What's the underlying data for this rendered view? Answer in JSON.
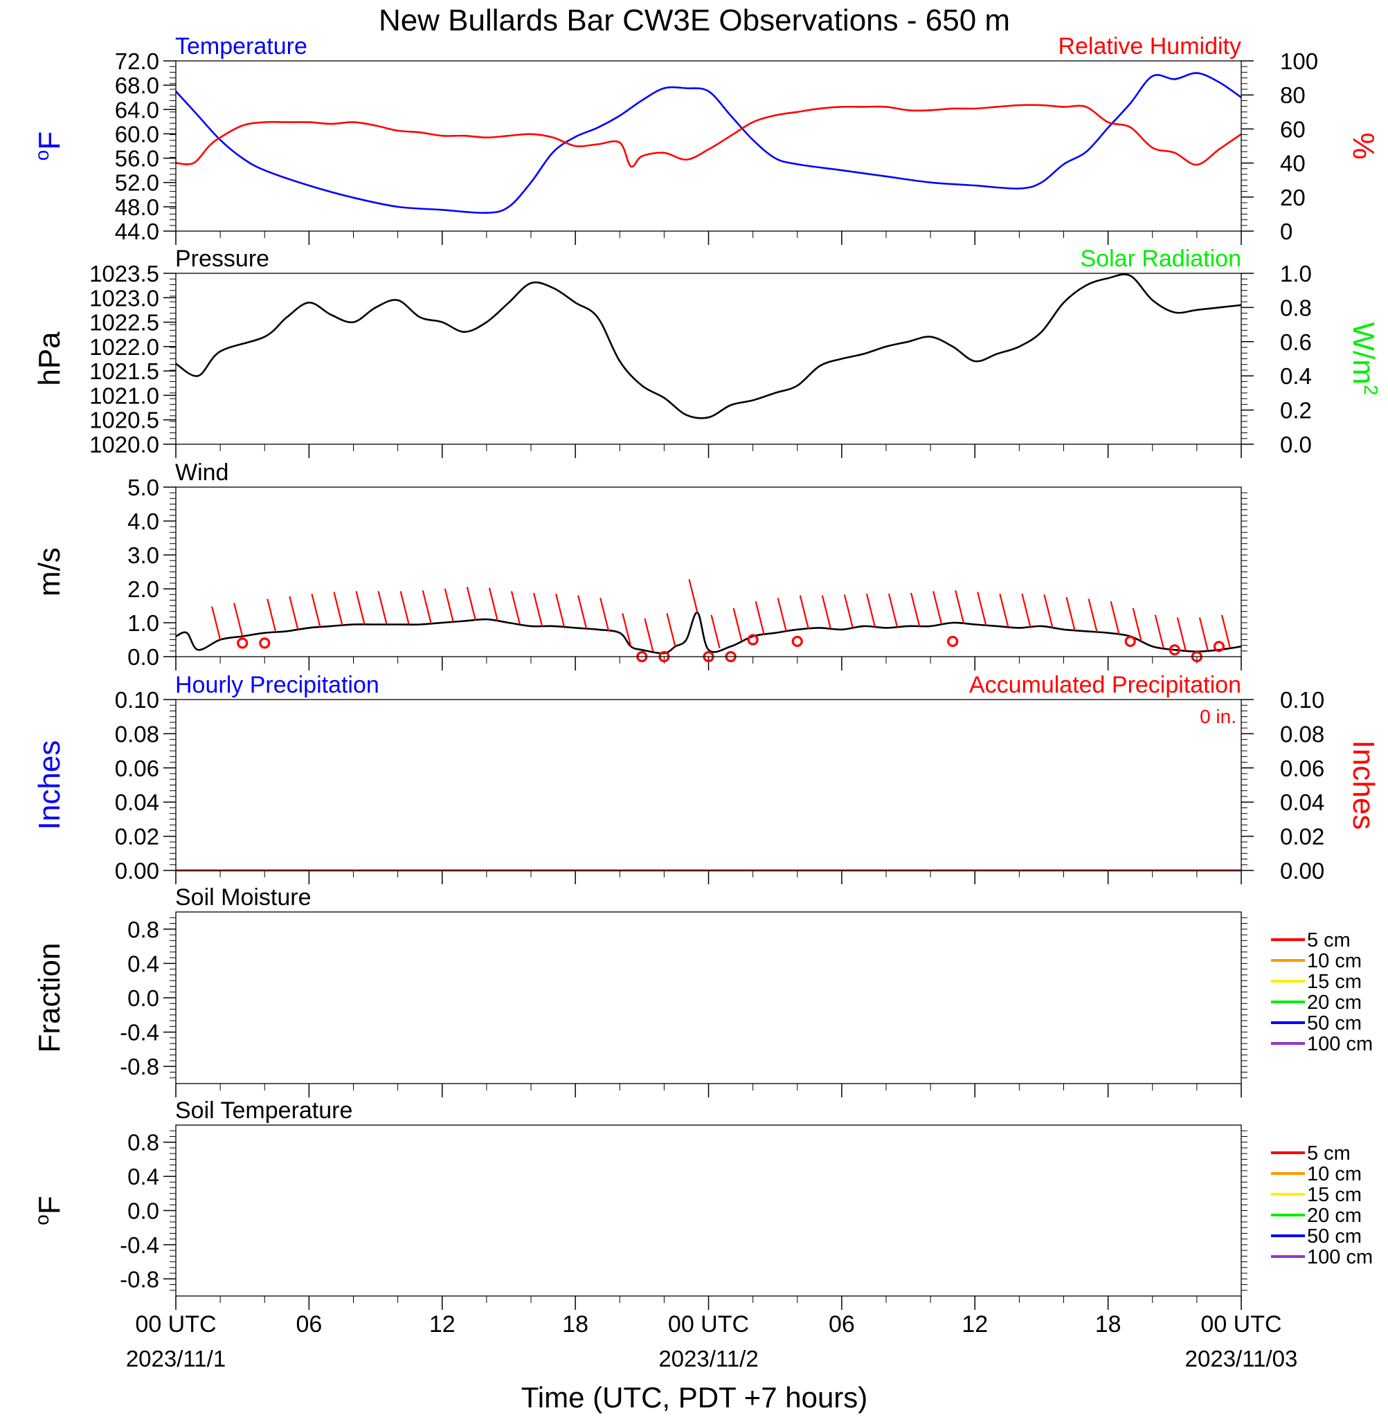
{
  "title": "New Bullards Bar CW3E Observations - 650 m",
  "xlabel": "Time (UTC, PDT +7 hours)",
  "x_axis": {
    "range_hours": [
      0,
      48
    ],
    "ticks": [
      {
        "hour": 0,
        "label": "00 UTC",
        "date": "2023/11/1"
      },
      {
        "hour": 6,
        "label": "06",
        "date": ""
      },
      {
        "hour": 12,
        "label": "12",
        "date": ""
      },
      {
        "hour": 18,
        "label": "18",
        "date": ""
      },
      {
        "hour": 24,
        "label": "00 UTC",
        "date": "2023/11/2"
      },
      {
        "hour": 30,
        "label": "06",
        "date": ""
      },
      {
        "hour": 36,
        "label": "12",
        "date": ""
      },
      {
        "hour": 42,
        "label": "18",
        "date": ""
      },
      {
        "hour": 48,
        "label": "00 UTC",
        "date": "2023/11/03"
      }
    ]
  },
  "colors": {
    "temperature": "#0000ff",
    "humidity": "#ff0000",
    "solar": "#00ee00",
    "pressure": "#000000"
  },
  "chart_data": [
    {
      "type": "line",
      "name_left": "Temperature",
      "name_right": "Relative Humidity",
      "ylabel_left": "oF",
      "ylabel_right": "%",
      "ylim_left": [
        44,
        72
      ],
      "yticks_left": [
        "72.0",
        "68.0",
        "64.0",
        "60.0",
        "56.0",
        "52.0",
        "48.0",
        "44.0"
      ],
      "ylim_right": [
        0,
        100
      ],
      "yticks_right": [
        "100",
        "80",
        "60",
        "40",
        "20",
        "0"
      ],
      "series": [
        {
          "name": "Temperature",
          "axis": "left",
          "color": "#0000ff",
          "x": [
            0,
            1,
            2,
            3,
            4,
            6,
            8,
            10,
            12,
            14,
            15,
            16,
            17,
            18,
            19,
            20,
            21,
            22,
            23,
            24,
            25,
            26,
            27,
            28,
            30,
            32,
            34,
            36,
            38,
            39,
            40,
            41,
            42,
            43,
            44,
            45,
            46,
            47,
            48
          ],
          "y": [
            67,
            63,
            59,
            56,
            54,
            51.5,
            49.5,
            48,
            47.5,
            47,
            48,
            52,
            57,
            59.5,
            61,
            63,
            65.5,
            67.5,
            67.5,
            67,
            63,
            59,
            56,
            55,
            54,
            53,
            52,
            51.5,
            51,
            52,
            55,
            57,
            61,
            65,
            69.5,
            69,
            70,
            68.5,
            66
          ]
        },
        {
          "name": "Relative Humidity",
          "axis": "right",
          "color": "#ff0000",
          "x": [
            0,
            0.8,
            1.5,
            2,
            3,
            4,
            5,
            6,
            7,
            8,
            9,
            10,
            11,
            12,
            13,
            14,
            15,
            16,
            17,
            18,
            19,
            20,
            20.5,
            21,
            22,
            23,
            24,
            25,
            26,
            27,
            28,
            29,
            30,
            31,
            32,
            33,
            34,
            35,
            36,
            37,
            38,
            39,
            40,
            41,
            42,
            43,
            44,
            45,
            46,
            47,
            48
          ],
          "y": [
            40,
            40,
            50,
            55,
            62,
            64,
            64,
            64,
            63,
            64,
            62,
            59,
            58,
            56,
            56,
            55,
            56,
            57,
            55,
            50,
            51,
            52,
            38,
            44,
            46,
            42,
            48,
            56,
            64,
            68,
            70,
            72,
            73,
            73,
            73,
            71,
            71,
            72,
            72,
            73,
            74,
            74,
            73,
            73,
            64,
            61,
            49,
            46,
            39,
            48,
            57
          ]
        }
      ]
    },
    {
      "type": "line",
      "name_left": "Pressure",
      "name_right": "Solar Radiation",
      "ylabel_left": "hPa",
      "ylabel_right": "W/m2",
      "ylim_left": [
        1020.0,
        1023.5
      ],
      "yticks_left": [
        "1023.5",
        "1023.0",
        "1022.5",
        "1022.0",
        "1021.5",
        "1021.0",
        "1020.5",
        "1020.0"
      ],
      "ylim_right": [
        0,
        1
      ],
      "yticks_right": [
        "1.0",
        "0.8",
        "0.6",
        "0.4",
        "0.2",
        "0.0"
      ],
      "series": [
        {
          "name": "Pressure",
          "axis": "left",
          "color": "#000000",
          "x": [
            0,
            1,
            2,
            4,
            5,
            6,
            7,
            8,
            9,
            10,
            11,
            12,
            13,
            14,
            15,
            16,
            17,
            18,
            19,
            20,
            21,
            22,
            23,
            24,
            25,
            26,
            27,
            28,
            29,
            30,
            31,
            32,
            33,
            34,
            35,
            36,
            37,
            38,
            39,
            40,
            41,
            42,
            43,
            44,
            45,
            46,
            47,
            48
          ],
          "y": [
            1021.65,
            1021.4,
            1021.9,
            1022.2,
            1022.6,
            1022.9,
            1022.65,
            1022.5,
            1022.8,
            1022.95,
            1022.6,
            1022.5,
            1022.3,
            1022.5,
            1022.9,
            1023.3,
            1023.2,
            1022.9,
            1022.6,
            1021.7,
            1021.2,
            1020.95,
            1020.6,
            1020.55,
            1020.8,
            1020.9,
            1021.05,
            1021.2,
            1021.6,
            1021.75,
            1021.85,
            1022.0,
            1022.1,
            1022.2,
            1022.0,
            1021.7,
            1021.85,
            1022.0,
            1022.3,
            1022.9,
            1023.25,
            1023.4,
            1023.45,
            1022.95,
            1022.7,
            1022.75,
            1022.8,
            1022.85
          ]
        }
      ]
    },
    {
      "type": "line",
      "name_left": "Wind",
      "ylabel_left": "m/s",
      "ylim_left": [
        0,
        5
      ],
      "yticks_left": [
        "5.0",
        "4.0",
        "3.0",
        "2.0",
        "1.0",
        "0.0"
      ],
      "series": [
        {
          "name": "Wind",
          "axis": "left",
          "color": "#000000",
          "x": [
            0,
            0.5,
            1,
            2,
            3,
            4,
            5,
            6,
            7,
            8,
            9,
            10,
            11,
            12,
            13,
            14,
            15,
            16,
            17,
            18,
            19,
            20,
            20.5,
            21,
            22,
            22.5,
            23,
            23.5,
            24,
            25,
            26,
            27,
            28,
            29,
            30,
            31,
            32,
            33,
            34,
            35,
            36,
            37,
            38,
            39,
            40,
            41,
            42,
            43,
            44,
            45,
            46,
            47,
            48
          ],
          "y": [
            0.6,
            0.7,
            0.2,
            0.5,
            0.6,
            0.7,
            0.75,
            0.85,
            0.9,
            0.95,
            0.95,
            0.95,
            0.95,
            1.0,
            1.05,
            1.1,
            1.0,
            0.9,
            0.9,
            0.85,
            0.8,
            0.7,
            0.3,
            0.2,
            0.1,
            0.3,
            0.5,
            1.3,
            0.2,
            0.3,
            0.6,
            0.7,
            0.8,
            0.85,
            0.8,
            0.9,
            0.85,
            0.9,
            0.9,
            1.0,
            0.95,
            0.9,
            0.85,
            0.9,
            0.8,
            0.75,
            0.7,
            0.6,
            0.3,
            0.2,
            0.15,
            0.2,
            0.3
          ]
        }
      ],
      "barbs": {
        "color": "#ff0000",
        "x": [
          2,
          3,
          4.5,
          5.5,
          6.5,
          7.5,
          8.5,
          9.5,
          10.5,
          11.5,
          12.5,
          13.5,
          14.5,
          15.5,
          16.5,
          17.5,
          18.5,
          19.5,
          20.5,
          21.5,
          22.5,
          23.5,
          24.5,
          25.5,
          26.5,
          27.5,
          28.5,
          29.5,
          30.5,
          31.5,
          32.5,
          33.5,
          34.5,
          35.5,
          36.5,
          37.5,
          38.5,
          39.5,
          40.5,
          41.5,
          42.5,
          43.5,
          44.5,
          45.5,
          46.5,
          47.5
        ]
      },
      "calm_markers": {
        "color": "#ff0000",
        "x": [
          3,
          4,
          21,
          22,
          24,
          25,
          26,
          28,
          35,
          43,
          45,
          46,
          47
        ],
        "y": [
          0.4,
          0.4,
          0.0,
          0.0,
          0.0,
          0.0,
          0.5,
          0.45,
          0.45,
          0.45,
          0.2,
          0.0,
          0.3
        ]
      }
    },
    {
      "type": "line",
      "name_left": "Hourly Precipitation",
      "name_right": "Accumulated Precipitation",
      "annotation": "0 in.",
      "ylabel_left": "Inches",
      "ylabel_right": "Inches",
      "ylim_left": [
        0,
        0.1
      ],
      "yticks_left": [
        "0.10",
        "0.08",
        "0.06",
        "0.04",
        "0.02",
        "0.00"
      ],
      "ylim_right": [
        0,
        0.1
      ],
      "yticks_right": [
        "0.10",
        "0.08",
        "0.06",
        "0.04",
        "0.02",
        "0.00"
      ],
      "series": [
        {
          "name": "Hourly Precipitation",
          "axis": "left",
          "color": "#0000ff",
          "x": [
            0,
            48
          ],
          "y": [
            0,
            0
          ]
        },
        {
          "name": "Accumulated Precipitation",
          "axis": "right",
          "color": "#ff0000",
          "x": [
            0,
            48
          ],
          "y": [
            0,
            0
          ]
        }
      ]
    },
    {
      "type": "line",
      "name_left": "Soil Moisture",
      "ylabel_left": "Fraction",
      "ylim_left": [
        -1.0,
        1.0
      ],
      "yticks_left": [
        "0.8",
        "0.4",
        "0.0",
        "-0.4",
        "-0.8"
      ],
      "legend": [
        "5 cm",
        "10 cm",
        "15 cm",
        "20 cm",
        "50 cm",
        "100 cm"
      ],
      "legend_colors": [
        "#ff0000",
        "#ff9900",
        "#ffee00",
        "#00ee00",
        "#0000ff",
        "#9933cc"
      ],
      "legend_placement": "right",
      "series": []
    },
    {
      "type": "line",
      "name_left": "Soil Temperature",
      "ylabel_left": "oF",
      "ylim_left": [
        -1.0,
        1.0
      ],
      "yticks_left": [
        "0.8",
        "0.4",
        "0.0",
        "-0.4",
        "-0.8"
      ],
      "legend": [
        "5 cm",
        "10 cm",
        "15 cm",
        "20 cm",
        "50 cm",
        "100 cm"
      ],
      "legend_colors": [
        "#ff0000",
        "#ff9900",
        "#ffee00",
        "#00ee00",
        "#0000ff",
        "#9933cc"
      ],
      "legend_placement": "right",
      "series": []
    }
  ]
}
